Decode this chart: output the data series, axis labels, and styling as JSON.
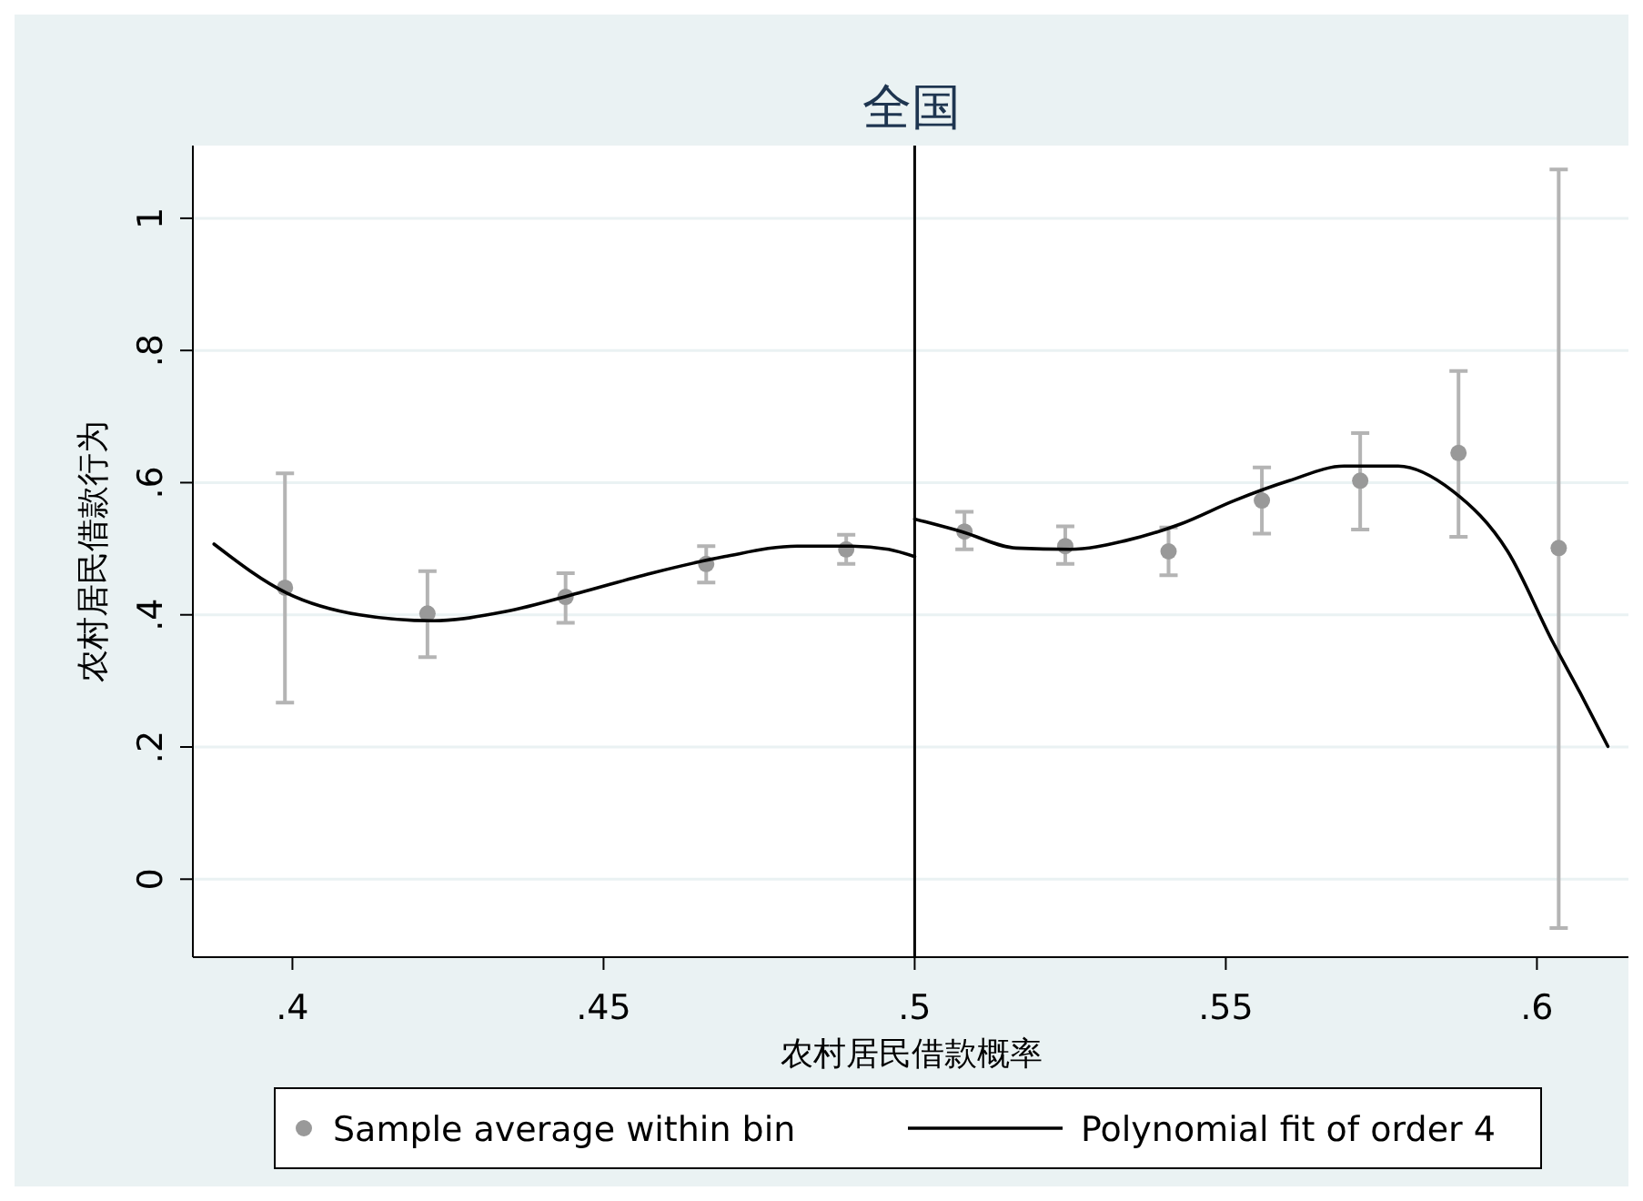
{
  "chart_data": {
    "type": "scatter",
    "title": "全国",
    "xlabel": "农村居民借款概率",
    "ylabel": "农村居民借款行为",
    "xlim": [
      0.384,
      0.615
    ],
    "xticks": [
      {
        "value": 0.4,
        "label": ".4"
      },
      {
        "value": 0.45,
        "label": ".45"
      },
      {
        "value": 0.5,
        "label": ".5"
      },
      {
        "value": 0.55,
        "label": ".55"
      },
      {
        "value": 0.6,
        "label": ".6"
      }
    ],
    "ylim": [
      -0.118,
      1.11
    ],
    "yticks": [
      {
        "value": 0,
        "label": "0"
      },
      {
        "value": 0.2,
        "label": ".2"
      },
      {
        "value": 0.4,
        "label": ".4"
      },
      {
        "value": 0.6,
        "label": ".6"
      },
      {
        "value": 0.8,
        "label": ".8"
      },
      {
        "value": 1,
        "label": "1"
      }
    ],
    "grid": "y",
    "legend": "bottom",
    "ref_lines": [
      {
        "axis": "x",
        "value": 0.5,
        "color": "#000000"
      }
    ],
    "series": [
      {
        "name": "Sample average within bin",
        "color": "#999999",
        "marker": "circle",
        "x": [
          0.3988,
          0.4217,
          0.4439,
          0.4665,
          0.489,
          0.508,
          0.5242,
          0.5408,
          0.5558,
          0.5716,
          0.5874,
          0.6035
        ],
        "values": [
          0.441,
          0.402,
          0.427,
          0.477,
          0.499,
          0.526,
          0.504,
          0.496,
          0.573,
          0.603,
          0.645,
          0.501
        ],
        "errors": [
          [
            0.267,
            0.614
          ],
          [
            0.336,
            0.466
          ],
          [
            0.388,
            0.463
          ],
          [
            0.449,
            0.504
          ],
          [
            0.477,
            0.521
          ],
          [
            0.499,
            0.556
          ],
          [
            0.477,
            0.534
          ],
          [
            0.46,
            0.532
          ],
          [
            0.523,
            0.623
          ],
          [
            0.529,
            0.675
          ],
          [
            0.518,
            0.769
          ],
          [
            -0.074,
            1.074
          ]
        ]
      },
      {
        "type": "line",
        "name": "Polynomial fit of order 4",
        "color": "#000000",
        "marker": "none",
        "x": [
          0.3874,
          0.3991,
          0.4108,
          0.4225,
          0.4343,
          0.446,
          0.4577,
          0.4694,
          0.4811,
          0.4899,
          0.4958,
          0.5
        ],
        "values": [
          0.507,
          0.433,
          0.4,
          0.391,
          0.405,
          0.433,
          0.463,
          0.488,
          0.504,
          0.504,
          0.499,
          0.488
        ]
      },
      {
        "type": "line",
        "color": "#000000",
        "marker": "none",
        "x": [
          0.5,
          0.5075,
          0.5163,
          0.525,
          0.5338,
          0.5426,
          0.5514,
          0.5602,
          0.569,
          0.5777,
          0.5865,
          0.5953,
          0.6026,
          0.607,
          0.6114
        ],
        "values": [
          0.545,
          0.526,
          0.501,
          0.499,
          0.512,
          0.537,
          0.573,
          0.603,
          0.625,
          0.625,
          0.587,
          0.496,
          0.358,
          0.281,
          0.201
        ]
      }
    ]
  }
}
